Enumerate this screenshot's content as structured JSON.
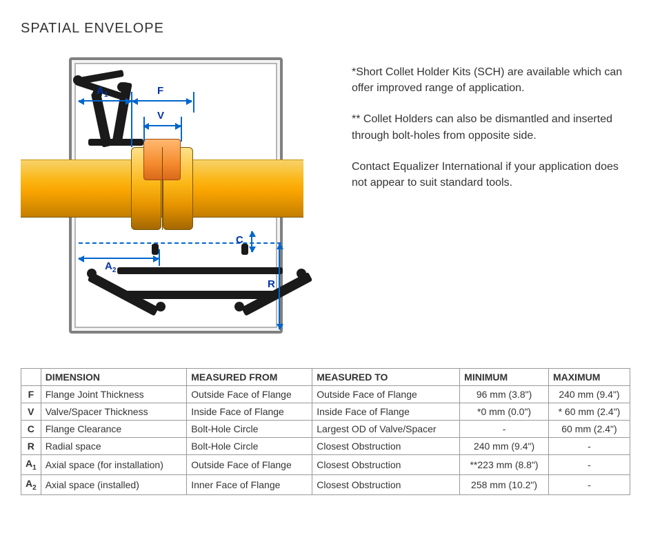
{
  "title": "SPATIAL ENVELOPE",
  "notes": {
    "p1": "*Short Collet Holder Kits (SCH) are available which can offer improved range of application.",
    "p2": "** Collet Holders can also be dismantled and inserted through bolt-holes from opposite side.",
    "p3": "Contact Equalizer International if your application does not appear to suit standard tools."
  },
  "diagram": {
    "labels": {
      "A1": "A",
      "A1_sub": "1",
      "F": "F",
      "V": "V",
      "A2": "A",
      "A2_sub": "2",
      "C": "C",
      "R": "R"
    },
    "colors": {
      "pipe_light": "#fbb615",
      "pipe_dark": "#c47f00",
      "valve": "#f58b2e",
      "tool": "#1a1a1a",
      "frame": "#808080",
      "dim": "#0066cc",
      "dim_text": "#0033aa"
    }
  },
  "table": {
    "headers": [
      "",
      "DIMENSION",
      "MEASURED FROM",
      "MEASURED TO",
      "MINIMUM",
      "MAXIMUM"
    ],
    "rows": [
      {
        "key": "F",
        "sub": "",
        "dimension": "Flange Joint Thickness",
        "from": "Outside Face of Flange",
        "to": "Outside Face of Flange",
        "min": "96 mm (3.8\")",
        "max": "240 mm (9.4\")"
      },
      {
        "key": "V",
        "sub": "",
        "dimension": "Valve/Spacer Thickness",
        "from": "Inside Face of Flange",
        "to": "Inside Face of Flange",
        "min": "*0 mm (0.0\")",
        "max": "* 60 mm (2.4\")"
      },
      {
        "key": "C",
        "sub": "",
        "dimension": "Flange Clearance",
        "from": "Bolt-Hole Circle",
        "to": "Largest OD of Valve/Spacer",
        "min": "-",
        "max": "60 mm (2.4\")"
      },
      {
        "key": "R",
        "sub": "",
        "dimension": "Radial space",
        "from": "Bolt-Hole Circle",
        "to": "Closest Obstruction",
        "min": "240 mm (9.4\")",
        "max": "-"
      },
      {
        "key": "A",
        "sub": "1",
        "dimension": "Axial space (for installation)",
        "from": "Outside Face of Flange",
        "to": "Closest Obstruction",
        "min": "**223 mm (8.8\")",
        "max": "-"
      },
      {
        "key": "A",
        "sub": "2",
        "dimension": "Axial space (installed)",
        "from": "Inner Face of Flange",
        "to": "Closest Obstruction",
        "min": "258 mm (10.2\")",
        "max": "-"
      }
    ]
  }
}
